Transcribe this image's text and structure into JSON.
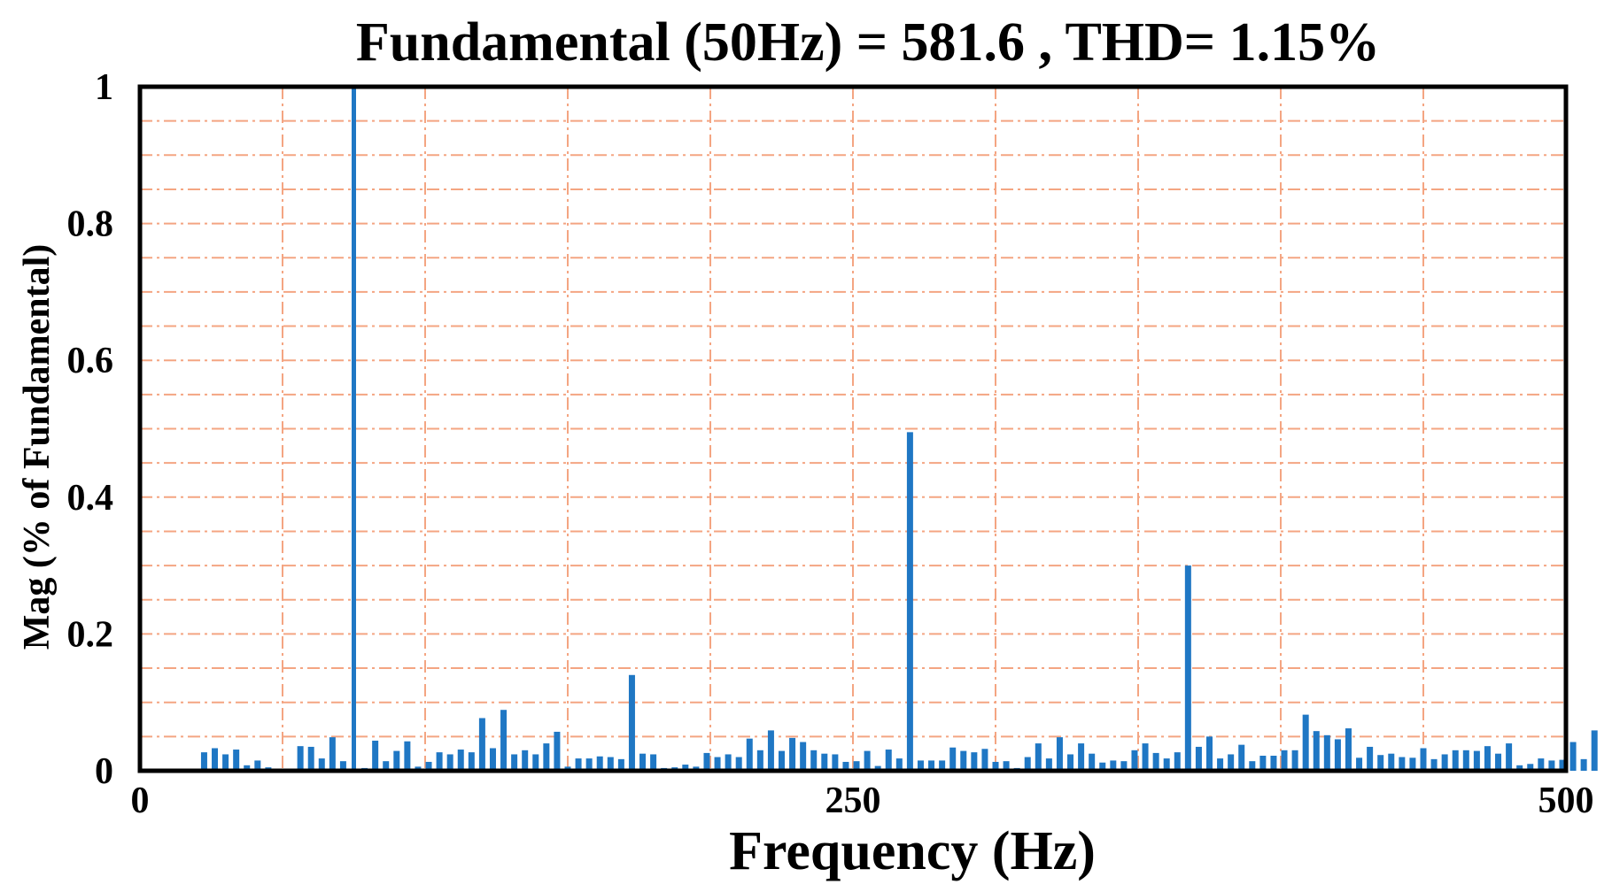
{
  "chart_data": {
    "type": "bar",
    "title": "Fundamental (50Hz) = 581.6 , THD= 1.15%",
    "xlabel": "Frequency (Hz)",
    "ylabel": "Mag (% of Fundamental)",
    "xlim": [
      0,
      500
    ],
    "ylim": [
      0,
      1
    ],
    "x_ticks": [
      "0",
      "250",
      "500"
    ],
    "y_ticks": [
      "0",
      "0.2",
      "0.4",
      "0.6",
      "0.8",
      "1"
    ],
    "grid": true,
    "grid_color": "#f4a582",
    "bar_color": "#1f77c4",
    "bar_spacing_hz": 3.75,
    "bar_start_hz": 22.5,
    "values": [
      0.027,
      0.033,
      0.024,
      0.031,
      0.008,
      0.015,
      0.005,
      0,
      0,
      0.036,
      0.035,
      0.018,
      0.049,
      0.014,
      1.0,
      0.004,
      0.044,
      0.014,
      0.029,
      0.043,
      0.006,
      0.013,
      0.027,
      0.024,
      0.031,
      0.027,
      0.077,
      0.033,
      0.089,
      0.024,
      0.03,
      0.024,
      0.04,
      0.057,
      0.006,
      0.018,
      0.018,
      0.021,
      0.02,
      0.017,
      0.14,
      0.025,
      0.024,
      0.004,
      0.005,
      0.009,
      0.006,
      0.026,
      0.02,
      0.024,
      0.02,
      0.047,
      0.03,
      0.059,
      0.029,
      0.048,
      0.042,
      0.03,
      0.025,
      0.024,
      0.013,
      0.014,
      0.029,
      0.007,
      0.031,
      0.018,
      0.495,
      0.015,
      0.015,
      0.015,
      0.034,
      0.029,
      0.027,
      0.032,
      0.013,
      0.014,
      0.004,
      0.02,
      0.04,
      0.018,
      0.049,
      0.024,
      0.04,
      0.025,
      0.012,
      0.015,
      0.014,
      0.03,
      0.04,
      0.026,
      0.018,
      0.027,
      0.3,
      0.035,
      0.05,
      0.018,
      0.024,
      0.038,
      0.014,
      0.022,
      0.022,
      0.03,
      0.03,
      0.082,
      0.058,
      0.052,
      0.046,
      0.062,
      0.019,
      0.035,
      0.023,
      0.025,
      0.02,
      0.019,
      0.033,
      0.017,
      0.024,
      0.03,
      0.03,
      0.029,
      0.036,
      0.025,
      0.04,
      0.008,
      0.01,
      0.018,
      0.015,
      0.016,
      0.042,
      0.017,
      0.059
    ]
  }
}
